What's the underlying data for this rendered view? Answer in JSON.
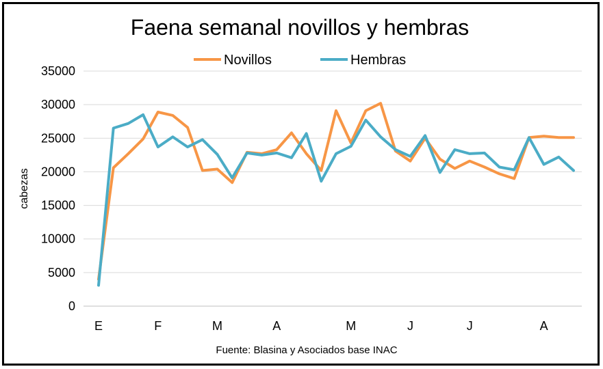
{
  "chart_data": {
    "type": "line",
    "title": "Faena semanal novillos y hembras",
    "ylabel": "cabezas",
    "xlabel": "",
    "ylim": [
      0,
      35000
    ],
    "yticks": [
      0,
      5000,
      10000,
      15000,
      20000,
      25000,
      30000,
      35000
    ],
    "xtick_labels": [
      {
        "label": "E",
        "index": 0
      },
      {
        "label": "F",
        "index": 4
      },
      {
        "label": "M",
        "index": 8
      },
      {
        "label": "A",
        "index": 12
      },
      {
        "label": "M",
        "index": 17
      },
      {
        "label": "J",
        "index": 21
      },
      {
        "label": "J",
        "index": 25
      },
      {
        "label": "A",
        "index": 30
      }
    ],
    "grid": true,
    "legend_position": "top-center",
    "series": [
      {
        "name": "Novillos",
        "color": "#F79646",
        "values": [
          4000,
          20600,
          22700,
          24900,
          28900,
          28400,
          26600,
          20200,
          20400,
          18400,
          22900,
          22700,
          23300,
          25800,
          22700,
          20200,
          29100,
          24300,
          29100,
          30200,
          23100,
          21600,
          25000,
          21900,
          20500,
          21600,
          20700,
          19700,
          19000,
          25100,
          25300,
          25100,
          25100
        ]
      },
      {
        "name": "Hembras",
        "color": "#4BACC6",
        "values": [
          3100,
          26500,
          27200,
          28500,
          23700,
          25200,
          23700,
          24800,
          22600,
          19100,
          22800,
          22500,
          22800,
          22100,
          25700,
          18600,
          22700,
          23800,
          27700,
          25200,
          23300,
          22300,
          25400,
          19900,
          23300,
          22700,
          22800,
          20700,
          20300,
          25100,
          21100,
          22200,
          20200
        ]
      }
    ]
  },
  "source_note": "Fuente: Blasina y Asociados base INAC"
}
